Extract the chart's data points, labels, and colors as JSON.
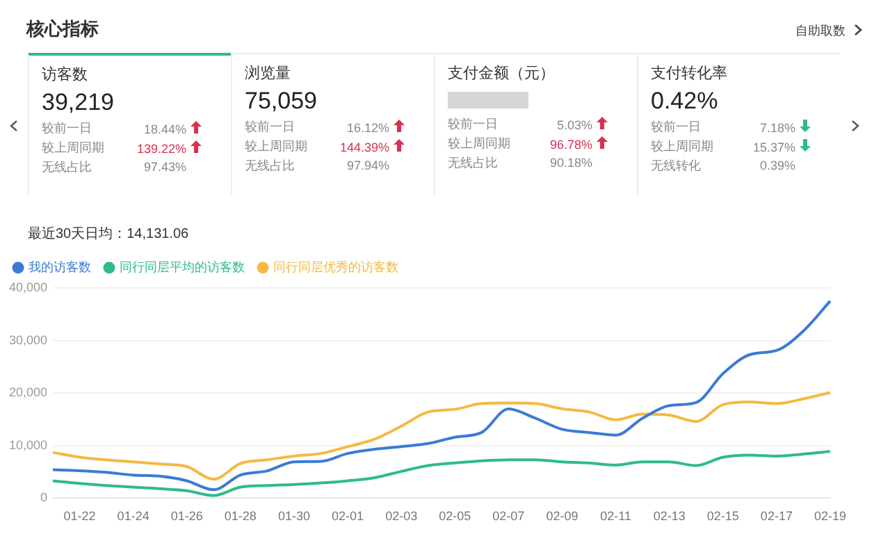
{
  "chart_data": [
    {
      "type": "other",
      "title": "核心指标",
      "annotations": [
        "自助取数",
        "访客数",
        "39,219",
        "较前一日",
        "18.44%",
        "较上周同期",
        "139.22%",
        "无线占比",
        "97.43%",
        "浏览量",
        "75,059",
        "较前一日",
        "16.12%",
        "较上周同期",
        "144.39%",
        "无线占比",
        "97.94%",
        "支付金额（元）",
        "较前一日",
        "5.03%",
        "较上周同期",
        "96.78%",
        "无线占比",
        "90.18%",
        "支付转化率",
        "0.42%",
        "较前一日",
        "7.18%",
        "较上周同期",
        "15.37%",
        "无线转化",
        "0.39%"
      ]
    },
    {
      "type": "line",
      "subtitle": "最近30天日均：14,131.06",
      "categories": [
        null,
        "01-22",
        null,
        "01-24",
        null,
        "01-26",
        null,
        "01-28",
        null,
        "01-30",
        null,
        "02-01",
        null,
        "02-03",
        null,
        "02-05",
        null,
        "02-07",
        null,
        "02-09",
        null,
        "02-11",
        null,
        "02-13",
        null,
        "02-15",
        null,
        "02-17",
        null,
        "02-19"
      ],
      "series": [
        {
          "name": "我的访客数",
          "color": "#3a7bd5",
          "values": [
            5400,
            5200,
            4900,
            4400,
            4200,
            3300,
            1600,
            4400,
            5200,
            6900,
            7000,
            8500,
            9300,
            9800,
            10400,
            11600,
            12500,
            17000,
            15200,
            13100,
            12500,
            12000,
            15200,
            17600,
            18200,
            23700,
            27300,
            28100,
            31800,
            37500
          ]
        },
        {
          "name": "同行同层平均的访客数",
          "color": "#2fba8c",
          "values": [
            3300,
            2800,
            2400,
            2100,
            1800,
            1400,
            500,
            2100,
            2400,
            2600,
            2900,
            3300,
            3900,
            5100,
            6200,
            6700,
            7100,
            7300,
            7300,
            6900,
            6700,
            6300,
            6900,
            6900,
            6200,
            7800,
            8200,
            8000,
            8400,
            8900
          ]
        },
        {
          "name": "同行同层优秀的访客数",
          "color": "#f5b942",
          "values": [
            8700,
            7800,
            7300,
            6900,
            6500,
            6000,
            3600,
            6600,
            7300,
            8000,
            8500,
            9800,
            11200,
            13700,
            16400,
            16900,
            18000,
            18100,
            18000,
            17000,
            16400,
            14900,
            16000,
            15800,
            14600,
            17800,
            18300,
            18000,
            18900,
            20100
          ]
        }
      ],
      "ylim": [
        0,
        40000
      ],
      "yticks": [
        0,
        {
          "value": 10000,
          "label": "10,000"
        },
        {
          "value": 20000,
          "label": "20,000"
        },
        {
          "value": 30000,
          "label": "30,000"
        },
        {
          "value": 40000,
          "label": "40,000"
        }
      ],
      "grid": "y",
      "legend": "top left",
      "marker": "none",
      "line_style": "solid"
    }
  ]
}
